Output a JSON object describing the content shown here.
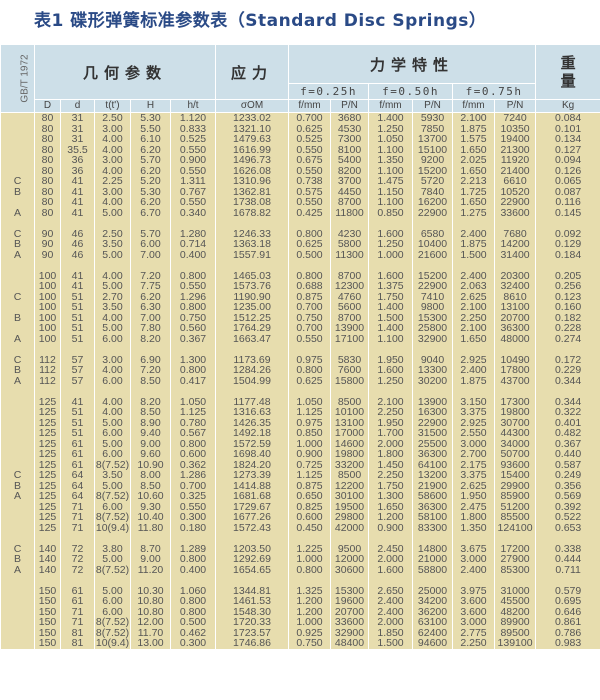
{
  "title": "表1  碟形弹簧标准参数表（Standard Disc Springs）",
  "header": {
    "standard": "GB/T 1972",
    "geometry": "几何参数",
    "stress": "应力",
    "mechanics": "力学特性",
    "weight": "重量",
    "deflections": [
      "f=0.25h",
      "f=0.50h",
      "f=0.75h"
    ],
    "columns": [
      "D",
      "d",
      "t(t')",
      "H",
      "h/t",
      "σOM",
      "f/mm",
      "P/N",
      "f/mm",
      "P/N",
      "f/mm",
      "P/N",
      "Kg"
    ]
  },
  "colors": {
    "header_bg": "#cddfe8",
    "row_bg": "#e7ddae",
    "title": "#2a4a86"
  },
  "groups": [
    [
      [
        "",
        "80",
        "31",
        "2.50",
        "5.30",
        "1.120",
        "1233.02",
        "0.700",
        "3680",
        "1.400",
        "5930",
        "2.100",
        "7240",
        "0.084"
      ],
      [
        "",
        "80",
        "31",
        "3.00",
        "5.50",
        "0.833",
        "1321.10",
        "0.625",
        "4530",
        "1.250",
        "7850",
        "1.875",
        "10350",
        "0.101"
      ],
      [
        "",
        "80",
        "31",
        "4.00",
        "6.10",
        "0.525",
        "1479.63",
        "0.525",
        "7300",
        "1.050",
        "13700",
        "1.575",
        "19400",
        "0.134"
      ],
      [
        "",
        "80",
        "35.5",
        "4.00",
        "6.20",
        "0.550",
        "1616.99",
        "0.550",
        "8100",
        "1.100",
        "15100",
        "1.650",
        "21300",
        "0.127"
      ],
      [
        "",
        "80",
        "36",
        "3.00",
        "5.70",
        "0.900",
        "1496.73",
        "0.675",
        "5400",
        "1.350",
        "9200",
        "2.025",
        "11920",
        "0.094"
      ],
      [
        "",
        "80",
        "36",
        "4.00",
        "6.20",
        "0.550",
        "1626.08",
        "0.550",
        "8200",
        "1.100",
        "15200",
        "1.650",
        "21400",
        "0.126"
      ],
      [
        "C",
        "80",
        "41",
        "2.25",
        "5.20",
        "1.311",
        "1310.96",
        "0.738",
        "3700",
        "1.475",
        "5720",
        "2.213",
        "6610",
        "0.065"
      ],
      [
        "B",
        "80",
        "41",
        "3.00",
        "5.30",
        "0.767",
        "1362.81",
        "0.575",
        "4450",
        "1.150",
        "7840",
        "1.725",
        "10520",
        "0.087"
      ],
      [
        "",
        "80",
        "41",
        "4.00",
        "6.20",
        "0.550",
        "1738.08",
        "0.550",
        "8700",
        "1.100",
        "16200",
        "1.650",
        "22900",
        "0.116"
      ],
      [
        "A",
        "80",
        "41",
        "5.00",
        "6.70",
        "0.340",
        "1678.82",
        "0.425",
        "11800",
        "0.850",
        "22900",
        "1.275",
        "33600",
        "0.145"
      ]
    ],
    [
      [
        "C",
        "90",
        "46",
        "2.50",
        "5.70",
        "1.280",
        "1246.33",
        "0.800",
        "4230",
        "1.600",
        "6580",
        "2.400",
        "7680",
        "0.092"
      ],
      [
        "B",
        "90",
        "46",
        "3.50",
        "6.00",
        "0.714",
        "1363.18",
        "0.625",
        "5800",
        "1.250",
        "10400",
        "1.875",
        "14200",
        "0.129"
      ],
      [
        "A",
        "90",
        "46",
        "5.00",
        "7.00",
        "0.400",
        "1557.91",
        "0.500",
        "11300",
        "1.000",
        "21600",
        "1.500",
        "31400",
        "0.184"
      ]
    ],
    [
      [
        "",
        "100",
        "41",
        "4.00",
        "7.20",
        "0.800",
        "1465.03",
        "0.800",
        "8700",
        "1.600",
        "15200",
        "2.400",
        "20300",
        "0.205"
      ],
      [
        "",
        "100",
        "41",
        "5.00",
        "7.75",
        "0.550",
        "1573.76",
        "0.688",
        "12300",
        "1.375",
        "22900",
        "2.063",
        "32400",
        "0.256"
      ],
      [
        "C",
        "100",
        "51",
        "2.70",
        "6.20",
        "1.296",
        "1190.90",
        "0.875",
        "4760",
        "1.750",
        "7410",
        "2.625",
        "8610",
        "0.123"
      ],
      [
        "",
        "100",
        "51",
        "3.50",
        "6.30",
        "0.800",
        "1235.00",
        "0.700",
        "5600",
        "1.400",
        "9800",
        "2.100",
        "13100",
        "0.160"
      ],
      [
        "B",
        "100",
        "51",
        "4.00",
        "7.00",
        "0.750",
        "1512.25",
        "0.750",
        "8700",
        "1.500",
        "15300",
        "2.250",
        "20700",
        "0.182"
      ],
      [
        "",
        "100",
        "51",
        "5.00",
        "7.80",
        "0.560",
        "1764.29",
        "0.700",
        "13900",
        "1.400",
        "25800",
        "2.100",
        "36300",
        "0.228"
      ],
      [
        "A",
        "100",
        "51",
        "6.00",
        "8.20",
        "0.367",
        "1663.47",
        "0.550",
        "17100",
        "1.100",
        "32900",
        "1.650",
        "48000",
        "0.274"
      ]
    ],
    [
      [
        "C",
        "112",
        "57",
        "3.00",
        "6.90",
        "1.300",
        "1173.69",
        "0.975",
        "5830",
        "1.950",
        "9040",
        "2.925",
        "10490",
        "0.172"
      ],
      [
        "B",
        "112",
        "57",
        "4.00",
        "7.20",
        "0.800",
        "1284.26",
        "0.800",
        "7600",
        "1.600",
        "13300",
        "2.400",
        "17800",
        "0.229"
      ],
      [
        "A",
        "112",
        "57",
        "6.00",
        "8.50",
        "0.417",
        "1504.99",
        "0.625",
        "15800",
        "1.250",
        "30200",
        "1.875",
        "43700",
        "0.344"
      ]
    ],
    [
      [
        "",
        "125",
        "41",
        "4.00",
        "8.20",
        "1.050",
        "1177.48",
        "1.050",
        "8500",
        "2.100",
        "13900",
        "3.150",
        "17300",
        "0.344"
      ],
      [
        "",
        "125",
        "51",
        "4.00",
        "8.50",
        "1.125",
        "1316.63",
        "1.125",
        "10100",
        "2.250",
        "16300",
        "3.375",
        "19800",
        "0.322"
      ],
      [
        "",
        "125",
        "51",
        "5.00",
        "8.90",
        "0.780",
        "1426.35",
        "0.975",
        "13100",
        "1.950",
        "22900",
        "2.925",
        "30700",
        "0.401"
      ],
      [
        "",
        "125",
        "51",
        "6.00",
        "9.40",
        "0.567",
        "1492.18",
        "0.850",
        "17000",
        "1.700",
        "31500",
        "2.550",
        "44300",
        "0.482"
      ],
      [
        "",
        "125",
        "61",
        "5.00",
        "9.00",
        "0.800",
        "1572.59",
        "1.000",
        "14600",
        "2.000",
        "25500",
        "3.000",
        "34000",
        "0.367"
      ],
      [
        "",
        "125",
        "61",
        "6.00",
        "9.60",
        "0.600",
        "1698.40",
        "0.900",
        "19800",
        "1.800",
        "36300",
        "2.700",
        "50700",
        "0.440"
      ],
      [
        "",
        "125",
        "61",
        "8(7.52)",
        "10.90",
        "0.362",
        "1824.20",
        "0.725",
        "33200",
        "1.450",
        "64100",
        "2.175",
        "93600",
        "0.587"
      ],
      [
        "C",
        "125",
        "64",
        "3.50",
        "8.00",
        "1.286",
        "1273.39",
        "1.125",
        "8500",
        "2.250",
        "13200",
        "3.375",
        "15400",
        "0.249"
      ],
      [
        "B",
        "125",
        "64",
        "5.00",
        "8.50",
        "0.700",
        "1414.88",
        "0.875",
        "12200",
        "1.750",
        "21900",
        "2.625",
        "29900",
        "0.356"
      ],
      [
        "A",
        "125",
        "64",
        "8(7.52)",
        "10.60",
        "0.325",
        "1681.68",
        "0.650",
        "30100",
        "1.300",
        "58600",
        "1.950",
        "85900",
        "0.569"
      ],
      [
        "",
        "125",
        "71",
        "6.00",
        "9.30",
        "0.550",
        "1729.67",
        "0.825",
        "19500",
        "1.650",
        "36300",
        "2.475",
        "51200",
        "0.392"
      ],
      [
        "",
        "125",
        "71",
        "8(7.52)",
        "10.40",
        "0.300",
        "1677.26",
        "0.600",
        "29800",
        "1.200",
        "58100",
        "1.800",
        "85500",
        "0.522"
      ],
      [
        "",
        "125",
        "71",
        "10(9.4)",
        "11.80",
        "0.180",
        "1572.43",
        "0.450",
        "42000",
        "0.900",
        "83300",
        "1.350",
        "124100",
        "0.653"
      ]
    ],
    [
      [
        "C",
        "140",
        "72",
        "3.80",
        "8.70",
        "1.289",
        "1203.50",
        "1.225",
        "9500",
        "2.450",
        "14800",
        "3.675",
        "17200",
        "0.338"
      ],
      [
        "B",
        "140",
        "72",
        "5.00",
        "9.00",
        "0.800",
        "1292.69",
        "1.000",
        "12000",
        "2.000",
        "21000",
        "3.000",
        "27900",
        "0.444"
      ],
      [
        "A",
        "140",
        "72",
        "8(7.52)",
        "11.20",
        "0.400",
        "1654.65",
        "0.800",
        "30600",
        "1.600",
        "58800",
        "2.400",
        "85300",
        "0.711"
      ]
    ],
    [
      [
        "",
        "150",
        "61",
        "5.00",
        "10.30",
        "1.060",
        "1344.81",
        "1.325",
        "15300",
        "2.650",
        "25000",
        "3.975",
        "31000",
        "0.579"
      ],
      [
        "",
        "150",
        "61",
        "6.00",
        "10.80",
        "0.800",
        "1461.53",
        "1.200",
        "19600",
        "2.400",
        "34200",
        "3.600",
        "45500",
        "0.695"
      ],
      [
        "",
        "150",
        "71",
        "6.00",
        "10.80",
        "0.800",
        "1548.30",
        "1.200",
        "20700",
        "2.400",
        "36200",
        "3.600",
        "48200",
        "0.646"
      ],
      [
        "",
        "150",
        "71",
        "8(7.52)",
        "12.00",
        "0.500",
        "1720.33",
        "1.000",
        "33600",
        "2.000",
        "63100",
        "3.000",
        "89900",
        "0.861"
      ],
      [
        "",
        "150",
        "81",
        "8(7.52)",
        "11.70",
        "0.462",
        "1723.57",
        "0.925",
        "32900",
        "1.850",
        "62400",
        "2.775",
        "89500",
        "0.786"
      ],
      [
        "",
        "150",
        "81",
        "10(9.4)",
        "13.00",
        "0.300",
        "1746.86",
        "0.750",
        "48400",
        "1.500",
        "94600",
        "2.250",
        "139100",
        "0.983"
      ]
    ]
  ]
}
